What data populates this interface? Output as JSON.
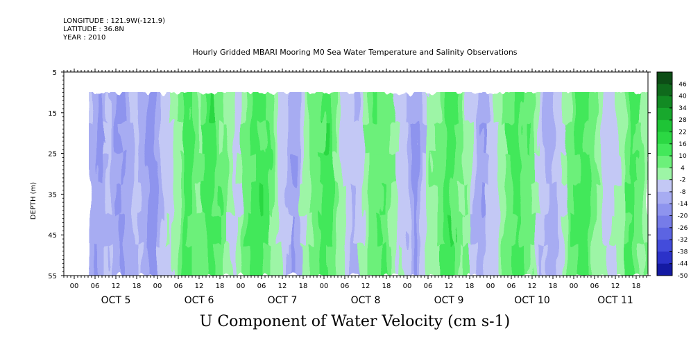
{
  "header": {
    "longitude": "LONGITUDE : 121.9W(-121.9)",
    "latitude": "LATITUDE : 36.8N",
    "year": "YEAR : 2010"
  },
  "chart_data": {
    "type": "heatmap",
    "title": "Hourly Gridded MBARI Mooring M0 Sea Water Temperature and Salinity Observations",
    "variable_label": "U Component of Water Velocity (cm s-1)",
    "ylabel": "DEPTH (m)",
    "ylim": [
      5,
      55
    ],
    "y_inverted": true,
    "y_ticks": [
      5,
      15,
      25,
      35,
      45,
      55
    ],
    "data_depth_range": [
      10,
      55
    ],
    "x_hour_labels": [
      "00",
      "06",
      "12",
      "18",
      "00",
      "06",
      "12",
      "18",
      "00",
      "06",
      "12",
      "18",
      "00",
      "06",
      "12",
      "18",
      "00",
      "06",
      "12",
      "18",
      "00",
      "06",
      "12",
      "18",
      "00",
      "06",
      "12",
      "18"
    ],
    "x_day_labels": [
      "OCT  5",
      "OCT  6",
      "OCT  7",
      "OCT  8",
      "OCT  9",
      "OCT 10",
      "OCT 11"
    ],
    "colorbar": {
      "levels": [
        48,
        46,
        40,
        34,
        28,
        22,
        16,
        10,
        4,
        -2,
        -8,
        -14,
        -20,
        -26,
        -32,
        -38,
        -44,
        -50
      ],
      "labels": [
        "46",
        "40",
        "34",
        "28",
        "22",
        "16",
        "10",
        "4",
        "-2",
        "-8",
        "-14",
        "-20",
        "-26",
        "-32",
        "-38",
        "-44",
        "-50"
      ]
    },
    "column_values_cm_s": [
      -8,
      -11,
      -14,
      -10,
      -6,
      -9,
      -13,
      -16,
      -12,
      -8,
      -5,
      -9,
      -13,
      -17,
      -14,
      -10,
      -6,
      -4,
      -2,
      2,
      6,
      10,
      12,
      9,
      5,
      8,
      12,
      14,
      11,
      7,
      3,
      -1,
      -4,
      -1,
      4,
      8,
      12,
      15,
      13,
      9,
      6,
      3,
      -2,
      -6,
      -10,
      -13,
      -9,
      -4,
      1,
      5,
      9,
      11,
      13,
      10,
      6,
      2,
      -2,
      -5,
      -8,
      -6,
      -3,
      1,
      5,
      8,
      11,
      9,
      6,
      3,
      -1,
      -4,
      -8,
      -11,
      -14,
      -10,
      -6,
      -2,
      2,
      6,
      9,
      12,
      14,
      10,
      6,
      2,
      -3,
      -7,
      -10,
      -12,
      -9,
      -5,
      -2,
      2,
      5,
      8,
      11,
      13,
      10,
      7,
      3,
      -1,
      -5,
      -9,
      -12,
      -8,
      -4,
      0,
      4,
      8,
      12,
      14,
      11,
      7,
      4,
      1,
      -3,
      -6,
      -4,
      0,
      4,
      8,
      11,
      9,
      6,
      2
    ]
  }
}
